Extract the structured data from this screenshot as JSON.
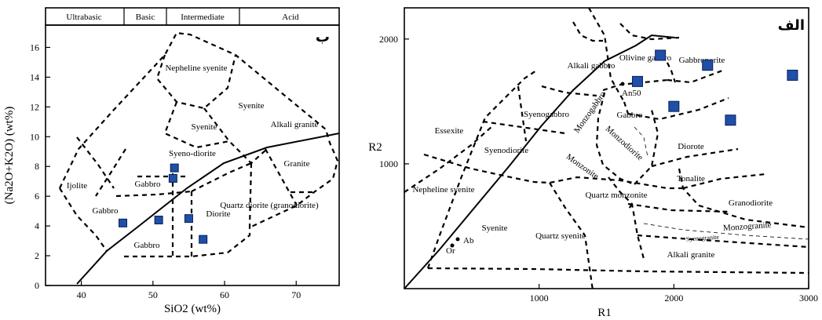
{
  "chart_data": [
    {
      "type": "scatter",
      "panel_label": "ب",
      "xlabel": "SiO2 (wt%)",
      "ylabel": "(Na2O+K2O) (wt%)",
      "xlim": [
        35,
        76
      ],
      "ylim": [
        0,
        17.5
      ],
      "x_ticks": [
        40,
        50,
        60,
        70
      ],
      "y_ticks": [
        0,
        2,
        4,
        6,
        8,
        10,
        12,
        14,
        16
      ],
      "top_bands": [
        "Ultrabasic",
        "Basic",
        "Intermediate",
        "Acid"
      ],
      "fields": [
        "Nepheline syenite",
        "Syenite",
        "Syenite",
        "Alkali granite",
        "Syeno-diorite",
        "Granite",
        "Quartz diorite (granodiorite)",
        "Ijolite",
        "Gabbro",
        "Gabbro",
        "Diorite",
        "Gabbro"
      ],
      "points": [
        {
          "x": 45.8,
          "y": 4.2
        },
        {
          "x": 50.8,
          "y": 4.4
        },
        {
          "x": 52.8,
          "y": 7.2
        },
        {
          "x": 53.0,
          "y": 7.9
        },
        {
          "x": 55.0,
          "y": 4.5
        },
        {
          "x": 57.0,
          "y": 3.1
        }
      ],
      "grid": false
    },
    {
      "type": "scatter",
      "panel_label": "الف",
      "xlabel": "R1",
      "ylabel": "R2",
      "xlim": [
        0,
        3000
      ],
      "ylim": [
        0,
        2250
      ],
      "x_ticks": [
        1000,
        2000,
        3000
      ],
      "y_ticks": [
        1000,
        2000
      ],
      "fields": [
        "Olivine gabbro",
        "Alkali gabbro",
        "Gabbronorite",
        "Essexite",
        "Syenogabbro",
        "Gabbro",
        "Monzogabbro",
        "Diorote",
        "Monzodiorite",
        "Syenodiorite",
        "Monzonite",
        "Tonalite",
        "Nepheline syenite",
        "Quartz monzonite",
        "Granodiorite",
        "Monzogranite",
        "Syenogranite",
        "Syenite",
        "Quartz syenite",
        "Alkali granite"
      ],
      "line_labels": [
        "An50",
        "Ab",
        "Or"
      ],
      "points": [
        {
          "x": 1900,
          "y": 1870
        },
        {
          "x": 1730,
          "y": 1660
        },
        {
          "x": 2250,
          "y": 1790
        },
        {
          "x": 2000,
          "y": 1460
        },
        {
          "x": 2420,
          "y": 1350
        },
        {
          "x": 2880,
          "y": 1710
        }
      ],
      "grid": false
    }
  ]
}
